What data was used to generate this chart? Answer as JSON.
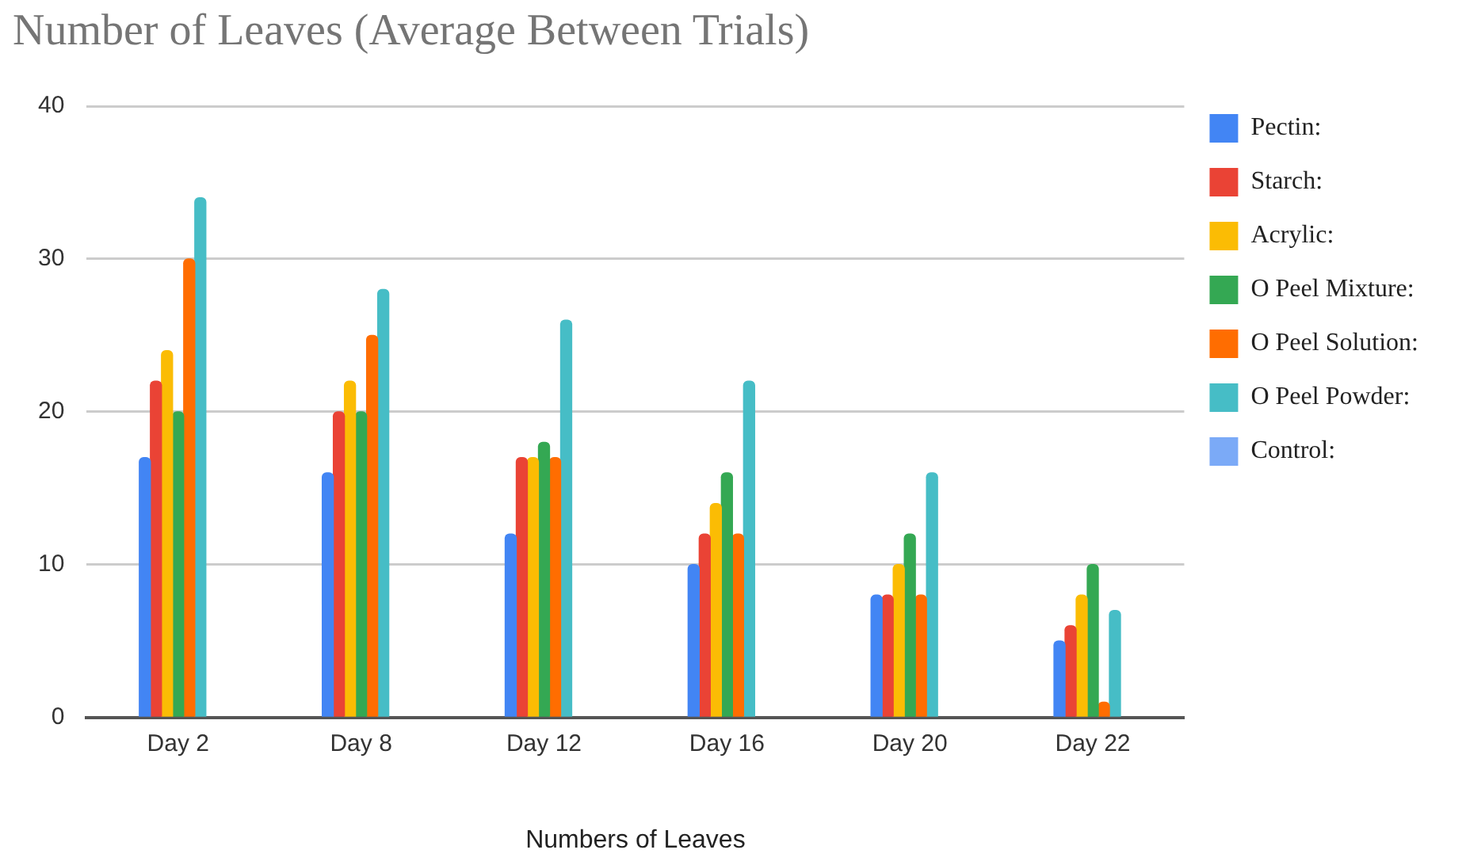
{
  "chart_data": {
    "type": "bar",
    "title": "Number of Leaves (Average Between Trials)",
    "xlabel": "Numbers of Leaves",
    "categories": [
      "Day 2",
      "Day 8",
      "Day 12",
      "Day 16",
      "Day 20",
      "Day 22"
    ],
    "series": [
      {
        "name": "Pectin:",
        "color": "#4285f4",
        "values": [
          17,
          16,
          12,
          10,
          8,
          5
        ]
      },
      {
        "name": "Starch:",
        "color": "#ea4335",
        "values": [
          22,
          20,
          17,
          12,
          8,
          6
        ]
      },
      {
        "name": "Acrylic:",
        "color": "#fbbc04",
        "values": [
          24,
          22,
          17,
          14,
          10,
          8
        ]
      },
      {
        "name": "O Peel Mixture:",
        "color": "#34a853",
        "values": [
          20,
          20,
          18,
          16,
          12,
          10
        ]
      },
      {
        "name": "O Peel Solution:",
        "color": "#ff6d01",
        "values": [
          30,
          25,
          17,
          12,
          8,
          1
        ]
      },
      {
        "name": "O Peel Powder:",
        "color": "#46bdc6",
        "values": [
          34,
          28,
          26,
          22,
          16,
          7
        ]
      },
      {
        "name": "Control:",
        "color": "#7baaf7",
        "values": [
          null,
          null,
          null,
          null,
          null,
          null
        ]
      }
    ],
    "ylim": [
      0,
      40
    ],
    "yticks": [
      0,
      10,
      20,
      30,
      40
    ],
    "grid": "y",
    "legend": "right"
  }
}
